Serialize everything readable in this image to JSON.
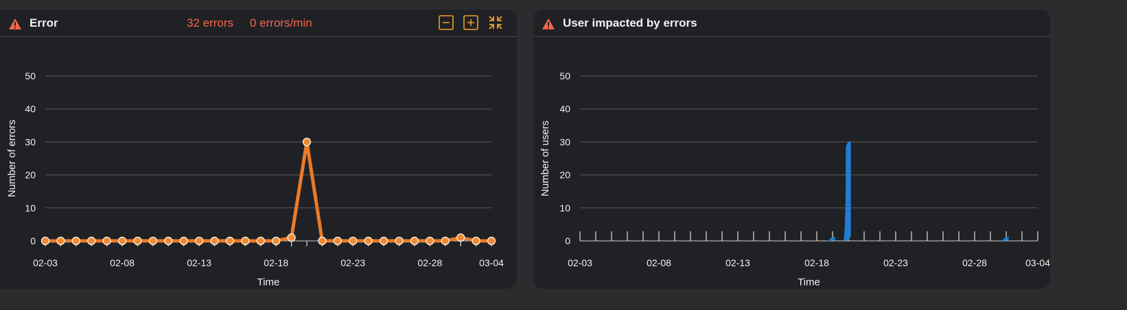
{
  "colors": {
    "accent": "#f4664a",
    "warning": "#f4664a",
    "errors_series": "#e87b2a",
    "users_series": "#1f7ed1",
    "toolbar": "#f0a12a"
  },
  "error_panel": {
    "title": "Error",
    "total_errors": "32 errors",
    "error_rate": "0 errors/min",
    "icons": [
      "warning-icon",
      "zoom-out-icon",
      "zoom-in-icon",
      "collapse-icon"
    ]
  },
  "users_panel": {
    "title": "User impacted by errors",
    "icons": [
      "warning-icon"
    ]
  },
  "chart_data": [
    {
      "type": "line",
      "title": "Error",
      "xlabel": "Time",
      "ylabel": "Number of errors",
      "ylim": [
        0,
        50
      ],
      "yticks": [
        "0",
        "10",
        "20",
        "30",
        "40",
        "50"
      ],
      "xtick_labels": [
        "02-03",
        "02-08",
        "02-13",
        "02-18",
        "02-23",
        "02-28",
        "03-04"
      ],
      "grid": true,
      "x": [
        "02-03",
        "02-04",
        "02-05",
        "02-06",
        "02-07",
        "02-08",
        "02-09",
        "02-10",
        "02-11",
        "02-12",
        "02-13",
        "02-14",
        "02-15",
        "02-16",
        "02-17",
        "02-18",
        "02-19",
        "02-20",
        "02-21",
        "02-22",
        "02-23",
        "02-24",
        "02-25",
        "02-26",
        "02-27",
        "02-28",
        "03-01",
        "03-02",
        "03-03",
        "03-04"
      ],
      "values": [
        0,
        0,
        0,
        0,
        0,
        0,
        0,
        0,
        0,
        0,
        0,
        0,
        0,
        0,
        0,
        0,
        1,
        30,
        0,
        0,
        0,
        0,
        0,
        0,
        0,
        0,
        0,
        1,
        0,
        0
      ]
    },
    {
      "type": "area",
      "title": "User impacted by errors",
      "xlabel": "Time",
      "ylabel": "Number of users",
      "ylim": [
        0,
        50
      ],
      "yticks": [
        "0",
        "10",
        "20",
        "30",
        "40",
        "50"
      ],
      "xtick_labels": [
        "02-03",
        "02-08",
        "02-13",
        "02-18",
        "02-23",
        "02-28",
        "03-04"
      ],
      "grid": true,
      "x": [
        "02-03",
        "02-04",
        "02-05",
        "02-06",
        "02-07",
        "02-08",
        "02-09",
        "02-10",
        "02-11",
        "02-12",
        "02-13",
        "02-14",
        "02-15",
        "02-16",
        "02-17",
        "02-18",
        "02-19",
        "02-20",
        "02-21",
        "02-22",
        "02-23",
        "02-24",
        "02-25",
        "02-26",
        "02-27",
        "02-28",
        "03-01",
        "03-02",
        "03-03",
        "03-04"
      ],
      "values": [
        0,
        0,
        0,
        0,
        0,
        0,
        0,
        0,
        0,
        0,
        0,
        0,
        0,
        0,
        0,
        0,
        1,
        30,
        0,
        0,
        0,
        0,
        0,
        0,
        0,
        0,
        0,
        1,
        0,
        0
      ]
    }
  ]
}
